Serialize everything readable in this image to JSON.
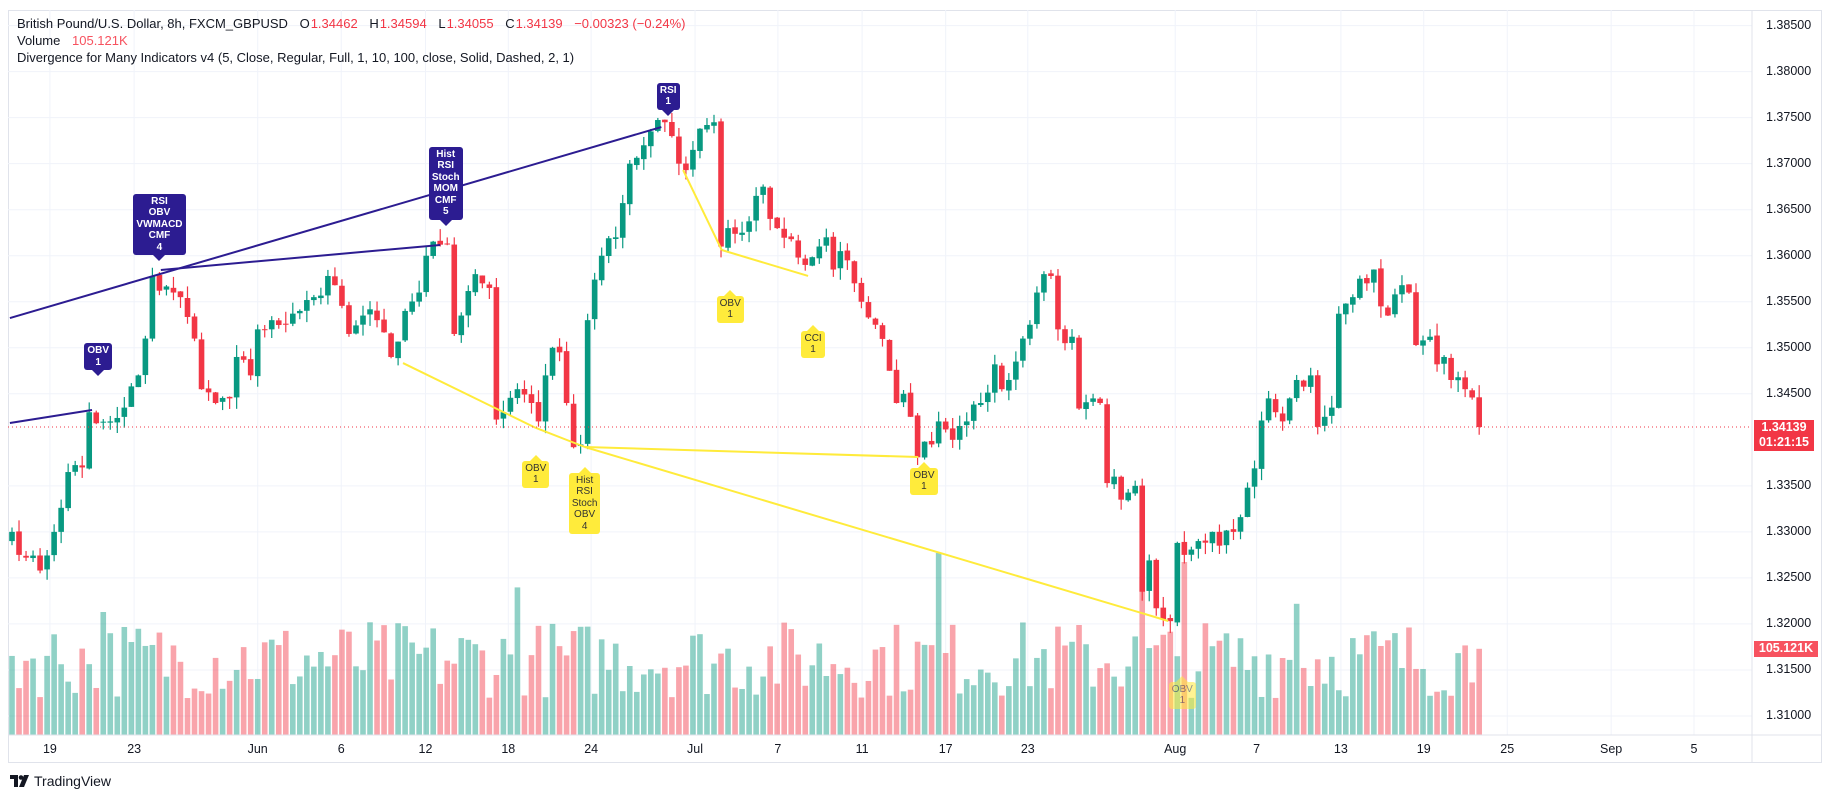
{
  "header": {
    "symbol": "British Pound/U.S. Dollar, 8h, FXCM_GBPUSD",
    "o_label": "O",
    "o": "1.34462",
    "h_label": "H",
    "h": "1.34594",
    "l_label": "L",
    "l": "1.34055",
    "c_label": "C",
    "c": "1.34139",
    "change": "−0.00323 (−0.24%)",
    "volume_label": "Volume",
    "volume_value": "105.121K",
    "indicator": "Divergence for Many Indicators v4 (5, Close, Regular, Full, 1, 10, 100, close, Solid, Dashed, 2, 1)"
  },
  "price_axis": {
    "ticks": [
      "1.38500",
      "1.38000",
      "1.37500",
      "1.37000",
      "1.36500",
      "1.36000",
      "1.35500",
      "1.35000",
      "1.34500",
      "1.33500",
      "1.33000",
      "1.32500",
      "1.32000",
      "1.31500",
      "1.31000"
    ],
    "current_price": "1.34139",
    "countdown": "01:21:15",
    "volume_badge": "105.121K"
  },
  "time_axis": {
    "ticks": [
      {
        "label": "19",
        "bar": 5.4
      },
      {
        "label": "23",
        "bar": 17.4
      },
      {
        "label": "Jun",
        "bar": 35
      },
      {
        "label": "6",
        "bar": 46.9
      },
      {
        "label": "12",
        "bar": 58.9
      },
      {
        "label": "18",
        "bar": 70.7
      },
      {
        "label": "24",
        "bar": 82.5
      },
      {
        "label": "Jul",
        "bar": 97.3
      },
      {
        "label": "7",
        "bar": 109.1
      },
      {
        "label": "11",
        "bar": 121.1
      },
      {
        "label": "17",
        "bar": 133
      },
      {
        "label": "23",
        "bar": 144.7
      },
      {
        "label": "Aug",
        "bar": 165.7
      },
      {
        "label": "7",
        "bar": 177.3
      },
      {
        "label": "13",
        "bar": 189.3
      },
      {
        "label": "19",
        "bar": 201.1
      },
      {
        "label": "25",
        "bar": 213
      },
      {
        "label": "Sep",
        "bar": 227.8
      },
      {
        "label": "5",
        "bar": 239.6
      }
    ]
  },
  "branding": {
    "logo_text": "TradingView"
  },
  "colors": {
    "up": "#089981",
    "down": "#f23645",
    "bear_div": "#2c1c91",
    "bull_div": "#ffeb3b",
    "grid": "#f0f3fa"
  },
  "chart_data": {
    "type": "candlestick",
    "title": "British Pound/U.S. Dollar, 8h, FXCM_GBPUSD",
    "ylim": [
      1.3075,
      1.3875
    ],
    "bars": 210,
    "last_candle": {
      "o": 1.34462,
      "h": 1.34594,
      "l": 1.34055,
      "c": 1.34139,
      "volume_k": 105.121
    },
    "close_path": [
      [
        0,
        1.33
      ],
      [
        2,
        1.3272
      ],
      [
        4,
        1.3258
      ],
      [
        6,
        1.33
      ],
      [
        8,
        1.3365
      ],
      [
        10,
        1.337
      ],
      [
        11,
        1.343
      ],
      [
        12,
        1.3418
      ],
      [
        14,
        1.342
      ],
      [
        16,
        1.3435
      ],
      [
        18,
        1.347
      ],
      [
        19,
        1.351
      ],
      [
        20,
        1.3578
      ],
      [
        21,
        1.3562
      ],
      [
        23,
        1.356
      ],
      [
        24,
        1.3555
      ],
      [
        26,
        1.351
      ],
      [
        27,
        1.3455
      ],
      [
        29,
        1.344
      ],
      [
        31,
        1.3445
      ],
      [
        32,
        1.349
      ],
      [
        34,
        1.347
      ],
      [
        35,
        1.352
      ],
      [
        37,
        1.353
      ],
      [
        39,
        1.3525
      ],
      [
        41,
        1.354
      ],
      [
        43,
        1.3555
      ],
      [
        45,
        1.3578
      ],
      [
        46,
        1.3568
      ],
      [
        48,
        1.3515
      ],
      [
        50,
        1.3535
      ],
      [
        52,
        1.353
      ],
      [
        54,
        1.349
      ],
      [
        56,
        1.354
      ],
      [
        58,
        1.356
      ],
      [
        59,
        1.36
      ],
      [
        61,
        1.3612
      ],
      [
        62,
        1.3613
      ],
      [
        63,
        1.3515
      ],
      [
        64,
        1.3535
      ],
      [
        66,
        1.358
      ],
      [
        67,
        1.357
      ],
      [
        68,
        1.3565
      ],
      [
        69,
        1.3422
      ],
      [
        70,
        1.343
      ],
      [
        72,
        1.3455
      ],
      [
        74,
        1.344
      ],
      [
        75,
        1.342
      ],
      [
        76,
        1.347
      ],
      [
        77,
        1.35
      ],
      [
        78,
        1.3495
      ],
      [
        79,
        1.344
      ],
      [
        80,
        1.3392
      ],
      [
        81,
        1.3395
      ],
      [
        82,
        1.353
      ],
      [
        84,
        1.36
      ],
      [
        86,
        1.362
      ],
      [
        88,
        1.37
      ],
      [
        90,
        1.372
      ],
      [
        91,
        1.3735
      ],
      [
        93,
        1.3745
      ],
      [
        94,
        1.373
      ],
      [
        95,
        1.37
      ],
      [
        96,
        1.3693
      ],
      [
        97,
        1.3715
      ],
      [
        98,
        1.3738
      ],
      [
        99,
        1.3742
      ],
      [
        100,
        1.3745
      ],
      [
        101,
        1.361
      ],
      [
        102,
        1.363
      ],
      [
        104,
        1.3625
      ],
      [
        106,
        1.3665
      ],
      [
        107,
        1.3675
      ],
      [
        108,
        1.364
      ],
      [
        109,
        1.363
      ],
      [
        111,
        1.3618
      ],
      [
        112,
        1.3598
      ],
      [
        113,
        1.359
      ],
      [
        115,
        1.361
      ],
      [
        116,
        1.362
      ],
      [
        117,
        1.3585
      ],
      [
        118,
        1.3605
      ],
      [
        119,
        1.3595
      ],
      [
        120,
        1.357
      ],
      [
        121,
        1.355
      ],
      [
        123,
        1.3525
      ],
      [
        125,
        1.3475
      ],
      [
        126,
        1.344
      ],
      [
        127,
        1.345
      ],
      [
        128,
        1.3425
      ],
      [
        129,
        1.3381
      ],
      [
        130,
        1.3398
      ],
      [
        131,
        1.3395
      ],
      [
        132,
        1.342
      ],
      [
        134,
        1.34
      ],
      [
        136,
        1.342
      ],
      [
        138,
        1.344
      ],
      [
        140,
        1.3482
      ],
      [
        141,
        1.3455
      ],
      [
        143,
        1.3485
      ],
      [
        144,
        1.351
      ],
      [
        145,
        1.3525
      ],
      [
        146,
        1.356
      ],
      [
        147,
        1.358
      ],
      [
        148,
        1.3578
      ],
      [
        149,
        1.352
      ],
      [
        150,
        1.3505
      ],
      [
        151,
        1.3512
      ],
      [
        152,
        1.3434
      ],
      [
        154,
        1.3445
      ],
      [
        155,
        1.344
      ],
      [
        156,
        1.3353
      ],
      [
        157,
        1.336
      ],
      [
        158,
        1.3335
      ],
      [
        160,
        1.335
      ],
      [
        161,
        1.3235
      ],
      [
        162,
        1.3269
      ],
      [
        163,
        1.3217
      ],
      [
        164,
        1.3205
      ],
      [
        165,
        1.3203
      ],
      [
        166,
        1.3288
      ],
      [
        167,
        1.3275
      ],
      [
        169,
        1.329
      ],
      [
        171,
        1.33
      ],
      [
        172,
        1.3285
      ],
      [
        174,
        1.33
      ],
      [
        175,
        1.3316
      ],
      [
        176,
        1.3348
      ],
      [
        177,
        1.3369
      ],
      [
        178,
        1.3421
      ],
      [
        179,
        1.3445
      ],
      [
        180,
        1.343
      ],
      [
        181,
        1.342
      ],
      [
        182,
        1.3445
      ],
      [
        183,
        1.3465
      ],
      [
        185,
        1.347
      ],
      [
        186,
        1.3414
      ],
      [
        187,
        1.3425
      ],
      [
        188,
        1.3435
      ],
      [
        189,
        1.3537
      ],
      [
        190,
        1.3548
      ],
      [
        191,
        1.3555
      ],
      [
        192,
        1.3575
      ],
      [
        193,
        1.357
      ],
      [
        194,
        1.3585
      ],
      [
        195,
        1.3545
      ],
      [
        196,
        1.3535
      ],
      [
        197,
        1.3558
      ],
      [
        198,
        1.3568
      ],
      [
        199,
        1.356
      ],
      [
        200,
        1.3503
      ],
      [
        201,
        1.3508
      ],
      [
        202,
        1.3512
      ],
      [
        203,
        1.3482
      ],
      [
        204,
        1.349
      ],
      [
        205,
        1.3465
      ],
      [
        206,
        1.3468
      ],
      [
        207,
        1.3455
      ],
      [
        208,
        1.3446
      ],
      [
        209,
        1.34139
      ]
    ],
    "volume_highlights_k": [
      [
        13,
        150
      ],
      [
        72,
        180
      ],
      [
        132,
        222
      ],
      [
        161,
        193
      ],
      [
        167,
        211
      ],
      [
        183,
        160
      ]
    ],
    "divergence_lines": [
      {
        "kind": "bear",
        "from": [
          -0.3,
          1.35323
        ],
        "to": [
          92.5,
          1.37398
        ]
      },
      {
        "kind": "bear",
        "from": [
          -0.3,
          1.34183
        ],
        "to": [
          11.4,
          1.34324
        ]
      },
      {
        "kind": "bear",
        "from": [
          21.2,
          1.35845
        ],
        "to": [
          61,
          1.36117
        ]
      },
      {
        "kind": "bull",
        "from": [
          95.6,
          1.36931
        ],
        "to": [
          101.1,
          1.36062
        ]
      },
      {
        "kind": "bull",
        "from": [
          101.1,
          1.36062
        ],
        "to": [
          113.4,
          1.3578
        ]
      },
      {
        "kind": "bull",
        "from": [
          55.7,
          1.34834
        ],
        "to": [
          74.6,
          1.3413
        ]
      },
      {
        "kind": "bull",
        "from": [
          74.6,
          1.3413
        ],
        "to": [
          81.6,
          1.33922
        ]
      },
      {
        "kind": "bull",
        "from": [
          81.6,
          1.33922
        ],
        "to": [
          129.1,
          1.33813
        ]
      },
      {
        "kind": "bull",
        "from": [
          81.6,
          1.33922
        ],
        "to": [
          164.7,
          1.32032
        ]
      }
    ],
    "divergence_labels": [
      {
        "kind": "bear",
        "bar": 12.3,
        "price": 1.34693,
        "lines": [
          "OBV",
          "1"
        ]
      },
      {
        "kind": "bear",
        "bar": 21,
        "price": 1.35932,
        "lines": [
          "RSI",
          "OBV",
          "VWMACD",
          "CMF",
          "4"
        ]
      },
      {
        "kind": "bear",
        "bar": 61.8,
        "price": 1.36323,
        "lines": [
          "Hist",
          "RSI",
          "Stoch",
          "MOM",
          "CMF",
          "5"
        ]
      },
      {
        "kind": "bear",
        "bar": 93.5,
        "price": 1.37518,
        "lines": [
          "RSI",
          "1"
        ]
      },
      {
        "kind": "bull",
        "bar": 102.3,
        "price": 1.35628,
        "lines": [
          "OBV",
          "1"
        ]
      },
      {
        "kind": "bull",
        "bar": 114.1,
        "price": 1.35248,
        "lines": [
          "CCI",
          "1"
        ]
      },
      {
        "kind": "bull",
        "bar": 74.6,
        "price": 1.33836,
        "lines": [
          "OBV",
          "1"
        ]
      },
      {
        "kind": "bull",
        "bar": 81.6,
        "price": 1.33706,
        "lines": [
          "Hist",
          "RSI",
          "Stoch",
          "OBV",
          "4"
        ]
      },
      {
        "kind": "bull",
        "bar": 129.9,
        "price": 1.3376,
        "lines": [
          "OBV",
          "1"
        ]
      },
      {
        "kind": "bull",
        "bar": 166.7,
        "price": 1.31436,
        "lines": [
          "OBV",
          "1"
        ]
      }
    ]
  }
}
